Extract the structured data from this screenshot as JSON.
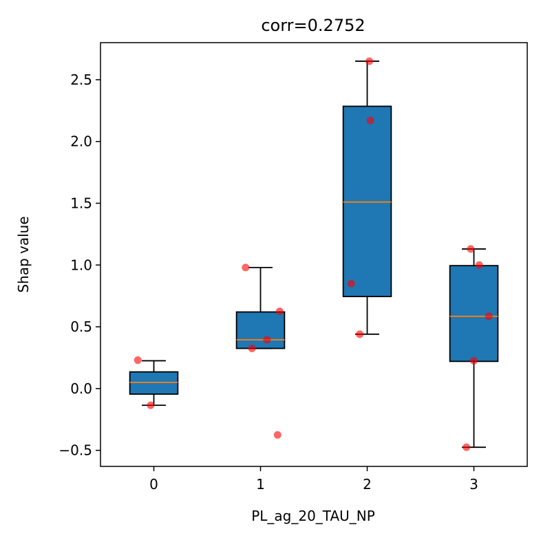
{
  "chart_data": {
    "type": "box",
    "title": "corr=0.2752",
    "xlabel": "PL_ag_20_TAU_NP",
    "ylabel": "Shap value",
    "categories": [
      "0",
      "1",
      "2",
      "3"
    ],
    "xlim": [
      -0.5,
      3.5
    ],
    "ylim": [
      -0.63,
      2.8
    ],
    "yticks": [
      -0.5,
      0.0,
      0.5,
      1.0,
      1.5,
      2.0,
      2.5
    ],
    "ytick_labels": [
      "−0.5",
      "0.0",
      "0.5",
      "1.0",
      "1.5",
      "2.0",
      "2.5"
    ],
    "boxes": [
      {
        "category": "0",
        "whisker_low": -0.135,
        "q1": -0.045,
        "median": 0.05,
        "q3": 0.135,
        "whisker_high": 0.225
      },
      {
        "category": "1",
        "whisker_low": 0.325,
        "q1": 0.325,
        "median": 0.395,
        "q3": 0.62,
        "whisker_high": 0.98
      },
      {
        "category": "2",
        "whisker_low": 0.44,
        "q1": 0.745,
        "median": 1.51,
        "q3": 2.285,
        "whisker_high": 2.65
      },
      {
        "category": "3",
        "whisker_low": -0.475,
        "q1": 0.22,
        "median": 0.585,
        "q3": 0.995,
        "whisker_high": 1.13
      }
    ],
    "points": [
      {
        "x": -0.15,
        "y": 0.23
      },
      {
        "x": -0.03,
        "y": -0.135
      },
      {
        "x": 0.86,
        "y": 0.98
      },
      {
        "x": 0.92,
        "y": 0.325
      },
      {
        "x": 1.06,
        "y": 0.395
      },
      {
        "x": 1.18,
        "y": 0.625
      },
      {
        "x": 1.16,
        "y": -0.375
      },
      {
        "x": 1.85,
        "y": 0.85
      },
      {
        "x": 1.93,
        "y": 0.44
      },
      {
        "x": 2.02,
        "y": 2.65
      },
      {
        "x": 2.03,
        "y": 2.17
      },
      {
        "x": 2.97,
        "y": 1.13
      },
      {
        "x": 3.05,
        "y": 1.0
      },
      {
        "x": 3.14,
        "y": 0.585
      },
      {
        "x": 3.0,
        "y": 0.225
      },
      {
        "x": 2.93,
        "y": -0.475
      }
    ],
    "colors": {
      "box_fill": "#1f77b4",
      "median": "#ff7f0e",
      "point": "#ff0000",
      "edge": "#000000"
    },
    "grid": false,
    "legend": "none"
  }
}
